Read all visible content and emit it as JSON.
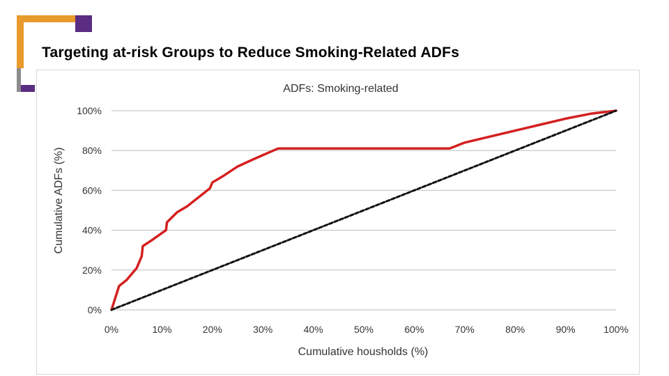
{
  "slide": {
    "title": "Targeting at-risk Groups to Reduce Smoking-Related ADFs",
    "colors": {
      "accent_orange": "#e89a2c",
      "accent_purple": "#5a2d83",
      "accent_gray": "#8c8c8c"
    }
  },
  "chart_data": {
    "type": "line",
    "title": "ADFs: Smoking-related",
    "xlabel": "Cumulative housholds (%)",
    "ylabel": "Cumulative ADFs (%)",
    "xlim": [
      0,
      100
    ],
    "ylim": [
      0,
      100
    ],
    "x_ticks": [
      "0%",
      "10%",
      "20%",
      "30%",
      "40%",
      "50%",
      "60%",
      "70%",
      "80%",
      "90%",
      "100%"
    ],
    "y_ticks": [
      "0%",
      "20%",
      "40%",
      "60%",
      "80%",
      "100%"
    ],
    "grid": "horizontal",
    "legend": "none",
    "series": [
      {
        "color": "#d42020",
        "style": "solid",
        "points": [
          [
            0,
            0
          ],
          [
            1.5,
            12
          ],
          [
            3,
            15
          ],
          [
            5,
            21
          ],
          [
            6,
            27
          ],
          [
            6.2,
            32
          ],
          [
            8,
            35
          ],
          [
            10.8,
            40
          ],
          [
            11,
            44
          ],
          [
            13,
            49
          ],
          [
            15,
            52
          ],
          [
            18,
            58
          ],
          [
            19.5,
            61
          ],
          [
            20,
            64
          ],
          [
            22,
            67
          ],
          [
            25,
            72
          ],
          [
            28,
            75.5
          ],
          [
            33,
            81
          ],
          [
            50,
            81
          ],
          [
            67,
            81
          ],
          [
            68,
            82
          ],
          [
            70,
            84
          ],
          [
            75,
            87
          ],
          [
            80,
            90
          ],
          [
            85,
            93
          ],
          [
            90,
            96
          ],
          [
            95,
            98.5
          ],
          [
            100,
            100
          ]
        ]
      },
      {
        "color": "#111111",
        "style": "dashed",
        "points": [
          [
            0,
            0
          ],
          [
            100,
            100
          ]
        ]
      }
    ]
  }
}
